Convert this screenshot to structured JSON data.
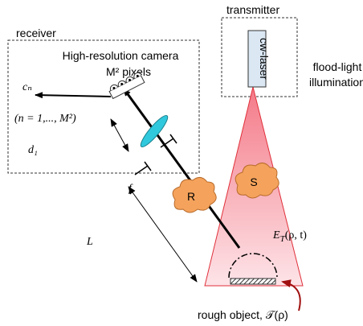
{
  "receiver": {
    "label": "receiver",
    "camera": "High-resolution camera",
    "pixels": "M² pixels",
    "output": "cₙ",
    "index_range": "(n = 1,..., M²)",
    "d1": "d₁",
    "f": "f",
    "L": "L"
  },
  "transmitter": {
    "label": "transmitter",
    "laser": "cw-laser",
    "illumination": [
      "flood-light",
      "illumination"
    ]
  },
  "scatterers": {
    "S": "S",
    "R": "R"
  },
  "field": {
    "symbol": "E",
    "sub": "T",
    "args": "(ρ, t)"
  },
  "object": "rough object, 𝒯(ρ)"
}
